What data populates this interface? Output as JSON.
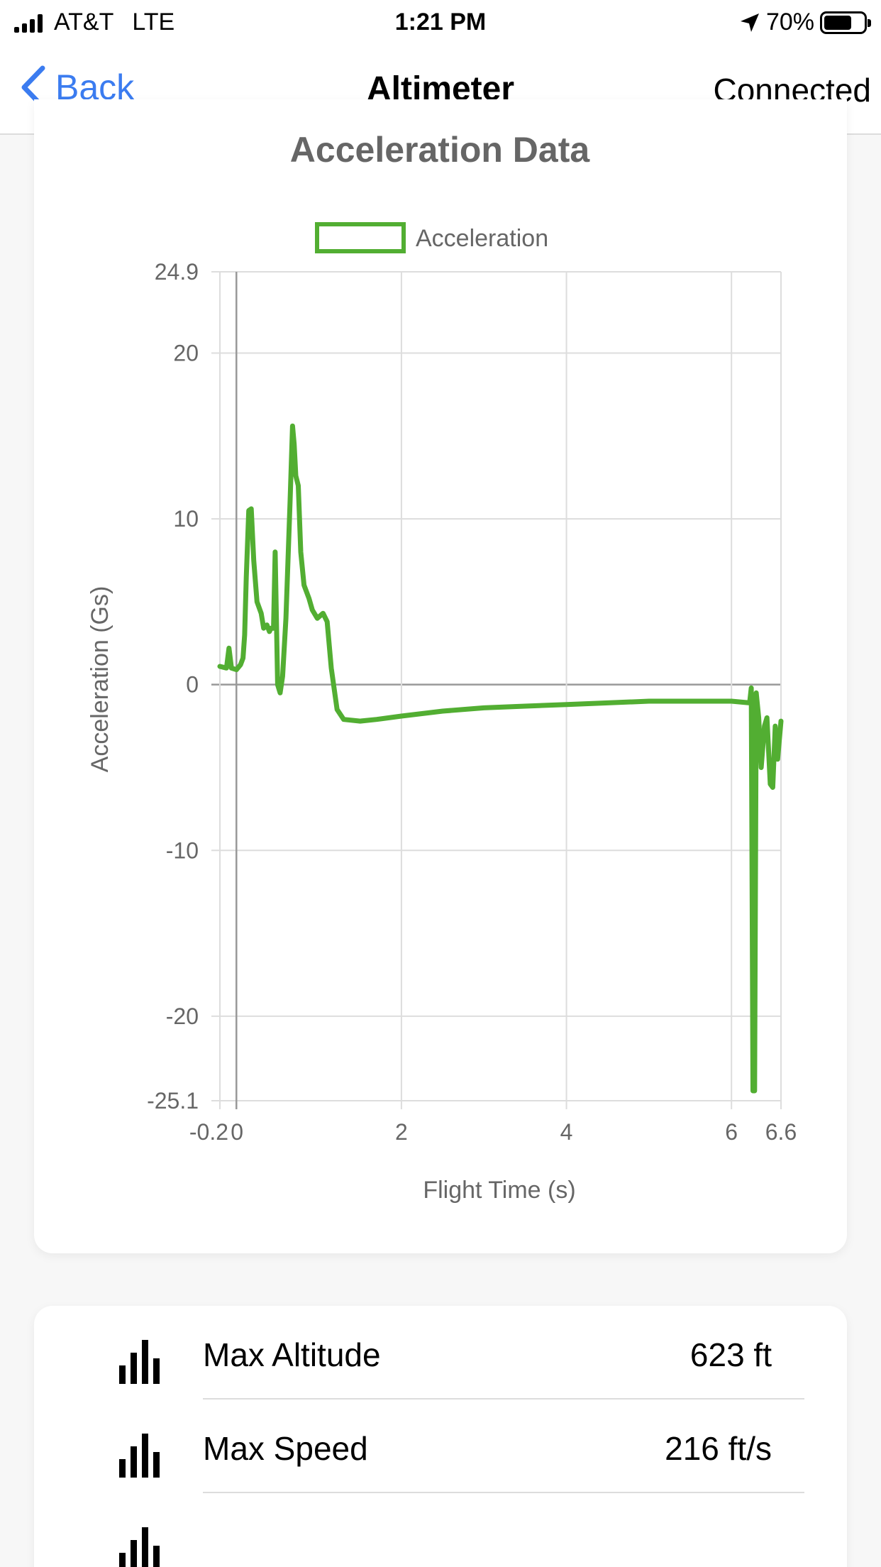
{
  "status_bar": {
    "carrier": "AT&T",
    "network": "LTE",
    "time": "1:21 PM",
    "battery": "70%",
    "battery_level": 0.7,
    "signal_bars": 4,
    "location_icon": "location-arrow-icon"
  },
  "nav": {
    "back_label": "Back",
    "title": "Altimeter",
    "status": "Connected"
  },
  "chart_data": {
    "type": "line",
    "title": "Acceleration Data",
    "xlabel": "Flight Time (s)",
    "ylabel": "Acceleration (Gs)",
    "xlim": [
      -0.2,
      6.6
    ],
    "ylim": [
      -25.1,
      24.9
    ],
    "x_ticks": [
      "-0.2",
      "0",
      "2",
      "4",
      "6",
      "6.6"
    ],
    "x_tick_values": [
      -0.2,
      0,
      2,
      4,
      6,
      6.6
    ],
    "y_ticks": [
      "24.9",
      "20",
      "10",
      "0",
      "-10",
      "-20",
      "-25.1"
    ],
    "y_tick_values": [
      24.9,
      20,
      10,
      0,
      -10,
      -20,
      -25.1
    ],
    "legend_position": "top-center",
    "grid": true,
    "series": [
      {
        "name": "Acceleration",
        "color": "#52ae32",
        "points": [
          [
            -0.2,
            1.1
          ],
          [
            -0.12,
            1.0
          ],
          [
            -0.09,
            2.2
          ],
          [
            -0.06,
            1.0
          ],
          [
            0.0,
            0.9
          ],
          [
            0.05,
            1.2
          ],
          [
            0.08,
            1.6
          ],
          [
            0.1,
            3.0
          ],
          [
            0.12,
            6.5
          ],
          [
            0.15,
            10.5
          ],
          [
            0.18,
            10.6
          ],
          [
            0.21,
            7.5
          ],
          [
            0.25,
            5.0
          ],
          [
            0.3,
            4.3
          ],
          [
            0.33,
            3.4
          ],
          [
            0.37,
            3.6
          ],
          [
            0.4,
            3.2
          ],
          [
            0.42,
            3.4
          ],
          [
            0.45,
            3.4
          ],
          [
            0.47,
            8.0
          ],
          [
            0.5,
            0.0
          ],
          [
            0.53,
            -0.5
          ],
          [
            0.56,
            0.5
          ],
          [
            0.6,
            4.0
          ],
          [
            0.65,
            11.0
          ],
          [
            0.68,
            15.6
          ],
          [
            0.7,
            14.5
          ],
          [
            0.72,
            12.6
          ],
          [
            0.75,
            12.0
          ],
          [
            0.78,
            8.0
          ],
          [
            0.82,
            6.0
          ],
          [
            0.88,
            5.2
          ],
          [
            0.92,
            4.5
          ],
          [
            0.98,
            4.0
          ],
          [
            1.05,
            4.3
          ],
          [
            1.1,
            3.8
          ],
          [
            1.15,
            1.0
          ],
          [
            1.22,
            -1.5
          ],
          [
            1.3,
            -2.1
          ],
          [
            1.5,
            -2.2
          ],
          [
            1.7,
            -2.1
          ],
          [
            2.0,
            -1.9
          ],
          [
            2.5,
            -1.6
          ],
          [
            3.0,
            -1.4
          ],
          [
            3.5,
            -1.3
          ],
          [
            4.0,
            -1.2
          ],
          [
            4.5,
            -1.1
          ],
          [
            5.0,
            -1.0
          ],
          [
            5.5,
            -1.0
          ],
          [
            6.0,
            -1.0
          ],
          [
            6.22,
            -1.1
          ],
          [
            6.24,
            -0.2
          ],
          [
            6.26,
            -24.5
          ],
          [
            6.28,
            -24.5
          ],
          [
            6.3,
            -0.5
          ],
          [
            6.33,
            -2.0
          ],
          [
            6.36,
            -5.0
          ],
          [
            6.4,
            -2.5
          ],
          [
            6.43,
            -2.0
          ],
          [
            6.47,
            -6.0
          ],
          [
            6.5,
            -6.2
          ],
          [
            6.53,
            -2.5
          ],
          [
            6.56,
            -4.5
          ],
          [
            6.6,
            -2.2
          ]
        ]
      }
    ]
  },
  "stats": [
    {
      "icon": "bar-chart-icon",
      "label": "Max Altitude",
      "value": "623 ft"
    },
    {
      "icon": "bar-chart-icon",
      "label": "Max Speed",
      "value": "216 ft/s"
    },
    {
      "icon": "bar-chart-icon",
      "label": "",
      "value": ""
    }
  ]
}
